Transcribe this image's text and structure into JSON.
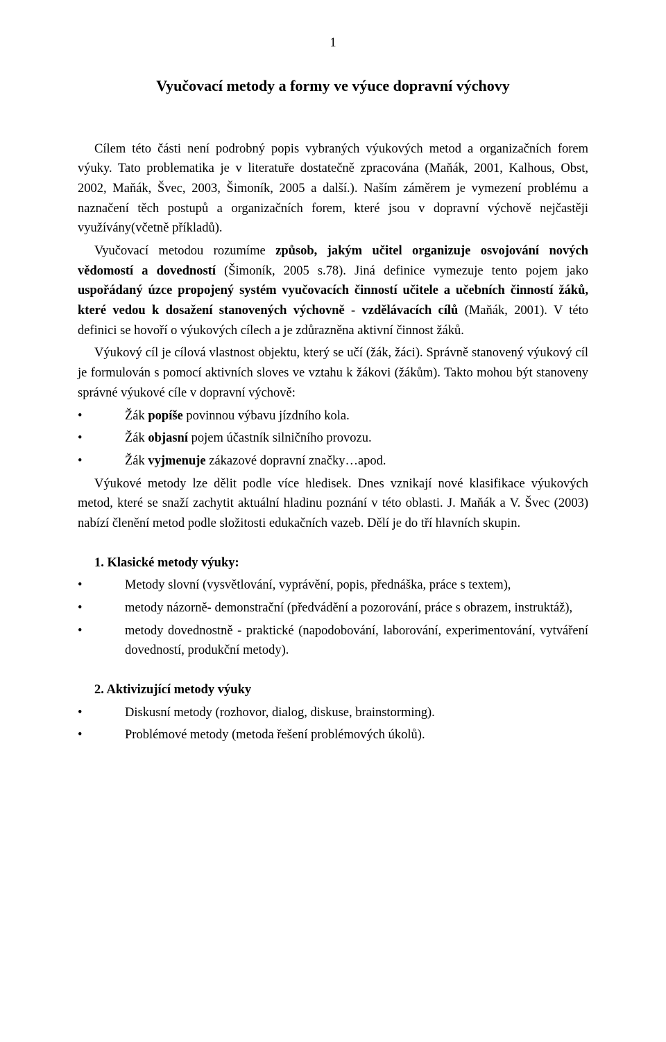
{
  "pageNumber": "1",
  "title": "Vyučovací metody a formy ve výuce dopravní výchovy",
  "p1_a": "Cílem této části není podrobný popis vybraných výukových metod a organizačních forem výuky. Tato problematika je v literatuře dostatečně zpracována (Maňák, 2001, Kalhous, Obst, 2002, Maňák, Švec, 2003, Šimoník, 2005 a další.). Naším záměrem je vymezení problému a naznačení těch postupů a organizačních forem, které jsou v dopravní výchově nejčastěji využívány(včetně příkladů).",
  "p2_a": "Vyučovací metodou rozumíme ",
  "p2_b": "způsob, jakým učitel organizuje osvojování nových vědomostí a dovedností ",
  "p2_c": "(Šimoník, 2005 s.78). Jiná definice vymezuje tento pojem jako ",
  "p2_d": "uspořádaný úzce propojený systém vyučovacích činností učitele a učebních činností žáků, které vedou k dosažení stanovených výchovně - vzdělávacích cílů ",
  "p2_e": "(Maňák, 2001). V této definici se hovoří o výukových cílech a je zdůrazněna aktivní činnost žáků.",
  "p3": "Výukový cíl je cílová vlastnost objektu, který se učí (žák, žáci). Správně stanovený výukový cíl je formulován s pomocí aktivních sloves ve vztahu k žákovi (žákům). Takto mohou být stanoveny správné výukové cíle v dopravní výchově:",
  "goals": {
    "g1_a": "Žák ",
    "g1_b": "popíše ",
    "g1_c": "povinnou výbavu jízdního kola.",
    "g2_a": "Žák ",
    "g2_b": "objasní ",
    "g2_c": "pojem účastník silničního provozu.",
    "g3_a": "Žák ",
    "g3_b": "vyjmenuje ",
    "g3_c": "zákazové dopravní značky…apod."
  },
  "p4": "Výukové metody lze dělit podle více hledisek. Dnes vznikají nové klasifikace výukových metod, které se snaží zachytit aktuální hladinu poznání v této oblasti.  J.  Maňák a V.  Švec (2003) nabízí členění metod podle složitosti edukačních vazeb. Dělí je do tří hlavních skupin.",
  "sec1_title": "1. Klasické metody výuky:",
  "sec1": {
    "b1": "Metody slovní (vysvětlování, vyprávění, popis, přednáška, práce s textem),",
    "b2": "metody  názorně-  demonstrační  (předvádění  a  pozorování,  práce  s obrazem, instruktáž),",
    "b3": "metody  dovednostně  -  praktické  (napodobování,  laborování,  experimentování, vytváření dovedností, produkční metody)."
  },
  "sec2_title": "2. Aktivizující metody výuky",
  "sec2": {
    "b1": "Diskusní metody (rozhovor, dialog, diskuse, brainstorming).",
    "b2": "Problémové metody (metoda řešení problémových úkolů)."
  }
}
